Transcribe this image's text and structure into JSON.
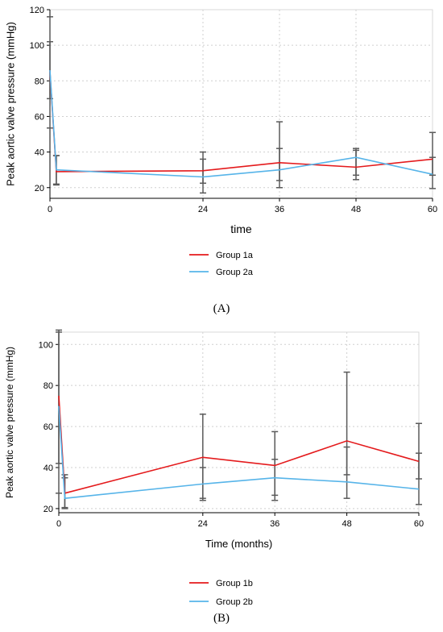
{
  "chart_data": [
    {
      "type": "line",
      "panel": "A",
      "caption": "(A)",
      "xlabel": "time",
      "ylabel": "Peak aortic valve pressure (mmHg)",
      "xlim": [
        0,
        60
      ],
      "ylim": [
        14,
        120
      ],
      "xticks": [
        0,
        24,
        36,
        48,
        60
      ],
      "yticks": [
        20,
        40,
        60,
        80,
        100,
        120
      ],
      "grid": true,
      "legend_position": "below",
      "series": [
        {
          "name": "Group 1a",
          "color": "#e41a1c",
          "x": [
            0,
            1,
            24,
            36,
            48,
            60
          ],
          "y": [
            85,
            29,
            29.5,
            34,
            31.5,
            36
          ],
          "err_low": [
            53.5,
            22,
            22.5,
            24,
            27,
            27
          ],
          "err_high": [
            116,
            38,
            36,
            42,
            41,
            51
          ]
        },
        {
          "name": "Group 2a",
          "color": "#56b4e9",
          "x": [
            0,
            1,
            24,
            36,
            48,
            60
          ],
          "y": [
            86,
            30,
            26,
            30,
            37,
            27.5
          ],
          "err_low": [
            70,
            21.5,
            17,
            20,
            24.5,
            19.5
          ],
          "err_high": [
            102,
            38,
            40,
            57,
            42,
            37
          ]
        }
      ]
    },
    {
      "type": "line",
      "panel": "B",
      "caption": "(B)",
      "xlabel": "Time (months)",
      "ylabel": "Peak aortic valve pressure (mmHg)",
      "xlim": [
        0,
        60
      ],
      "ylim": [
        18,
        106
      ],
      "xticks": [
        0,
        24,
        36,
        48,
        60
      ],
      "yticks": [
        20,
        40,
        60,
        80,
        100
      ],
      "grid": true,
      "legend_position": "below",
      "series": [
        {
          "name": "Group 1b",
          "color": "#e41a1c",
          "x": [
            0,
            1,
            24,
            36,
            48,
            60
          ],
          "y": [
            75,
            27.5,
            45,
            41,
            53,
            43
          ],
          "err_low": [
            42,
            20.5,
            24,
            26.5,
            36.5,
            34.5
          ],
          "err_high": [
            107,
            36.5,
            66,
            57.5,
            86.5,
            61.5
          ]
        },
        {
          "name": "Group 2b",
          "color": "#56b4e9",
          "x": [
            0,
            1,
            24,
            36,
            48,
            60
          ],
          "y": [
            70,
            25,
            32,
            35,
            33,
            29.5
          ],
          "err_low": [
            27.5,
            20,
            25,
            24,
            25,
            22
          ],
          "err_high": [
            106,
            35,
            40,
            44,
            50,
            47
          ]
        }
      ]
    }
  ]
}
